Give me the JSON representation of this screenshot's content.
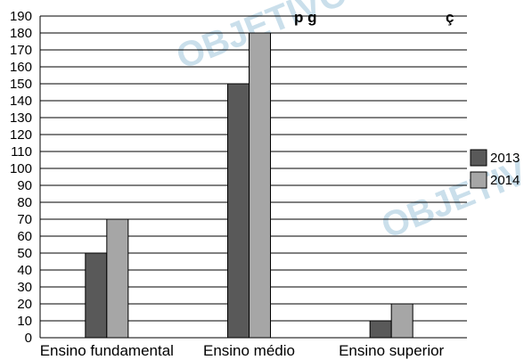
{
  "chart_data": {
    "type": "bar",
    "title": "",
    "title_fragment": "p g",
    "title_fragment_tail": "ç",
    "xlabel": "",
    "ylabel": "",
    "categories": [
      "Ensino fundamental",
      "Ensino médio",
      "Ensino superior"
    ],
    "series": [
      {
        "name": "2013",
        "values": [
          50,
          150,
          10
        ],
        "color": "#595959"
      },
      {
        "name": "2014",
        "values": [
          70,
          180,
          20
        ],
        "color": "#a6a6a6"
      }
    ],
    "ylim": [
      0,
      190
    ],
    "yticks": [
      0,
      10,
      20,
      30,
      40,
      50,
      60,
      70,
      80,
      90,
      100,
      110,
      120,
      130,
      140,
      150,
      160,
      170,
      180,
      190
    ],
    "grid": true,
    "legend_position": "right"
  },
  "watermark": {
    "text": "OBJETIVO",
    "color": "#6aa6c8"
  }
}
